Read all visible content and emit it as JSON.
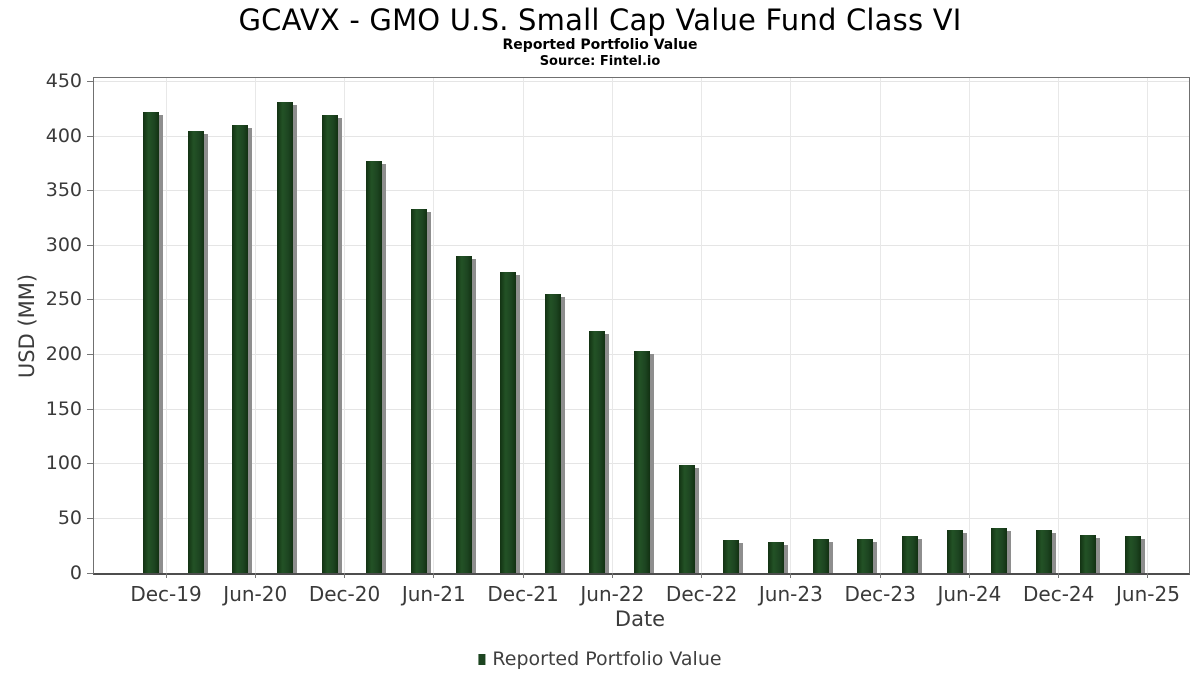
{
  "header": {
    "title": "GCAVX - GMO U.S. Small Cap Value Fund Class VI",
    "subtitle": "Reported Portfolio Value",
    "source": "Source: Fintel.io"
  },
  "legend": {
    "label": "Reported Portfolio Value"
  },
  "chart_data": {
    "type": "bar",
    "title": "GCAVX - GMO U.S. Small Cap Value Fund Class VI",
    "subtitle": "Reported Portfolio Value",
    "source": "Source: Fintel.io",
    "xlabel": "Date",
    "ylabel": "USD (MM)",
    "series_name": "Reported Portfolio Value",
    "categories": [
      "Nov-19",
      "Feb-20",
      "May-20",
      "Aug-20",
      "Nov-20",
      "Feb-21",
      "May-21",
      "Aug-21",
      "Nov-21",
      "Feb-22",
      "May-22",
      "Aug-22",
      "Nov-22",
      "Feb-23",
      "May-23",
      "Aug-23",
      "Nov-23",
      "Feb-24",
      "May-24",
      "Aug-24",
      "Nov-24",
      "Feb-25",
      "May-25"
    ],
    "values": [
      422,
      405,
      410,
      431,
      419,
      377,
      333,
      290,
      276,
      255,
      222,
      203,
      99,
      30,
      28,
      31,
      31,
      34,
      39,
      41,
      39,
      35,
      34
    ],
    "x_tick_labels": [
      "Dec-19",
      "Jun-20",
      "Dec-20",
      "Jun-21",
      "Dec-21",
      "Jun-22",
      "Dec-22",
      "Jun-23",
      "Dec-23",
      "Jun-24",
      "Dec-24",
      "Jun-25"
    ],
    "y_ticks": [
      0,
      50,
      100,
      150,
      200,
      250,
      300,
      350,
      400,
      450
    ],
    "ylim": [
      0,
      450
    ],
    "grid": true,
    "legend_position": "bottom",
    "bar_color": "#1d4521",
    "bar_color_dark": "#123112",
    "bar_color_light": "#235226",
    "shadow_color": "#8e8e8e"
  }
}
